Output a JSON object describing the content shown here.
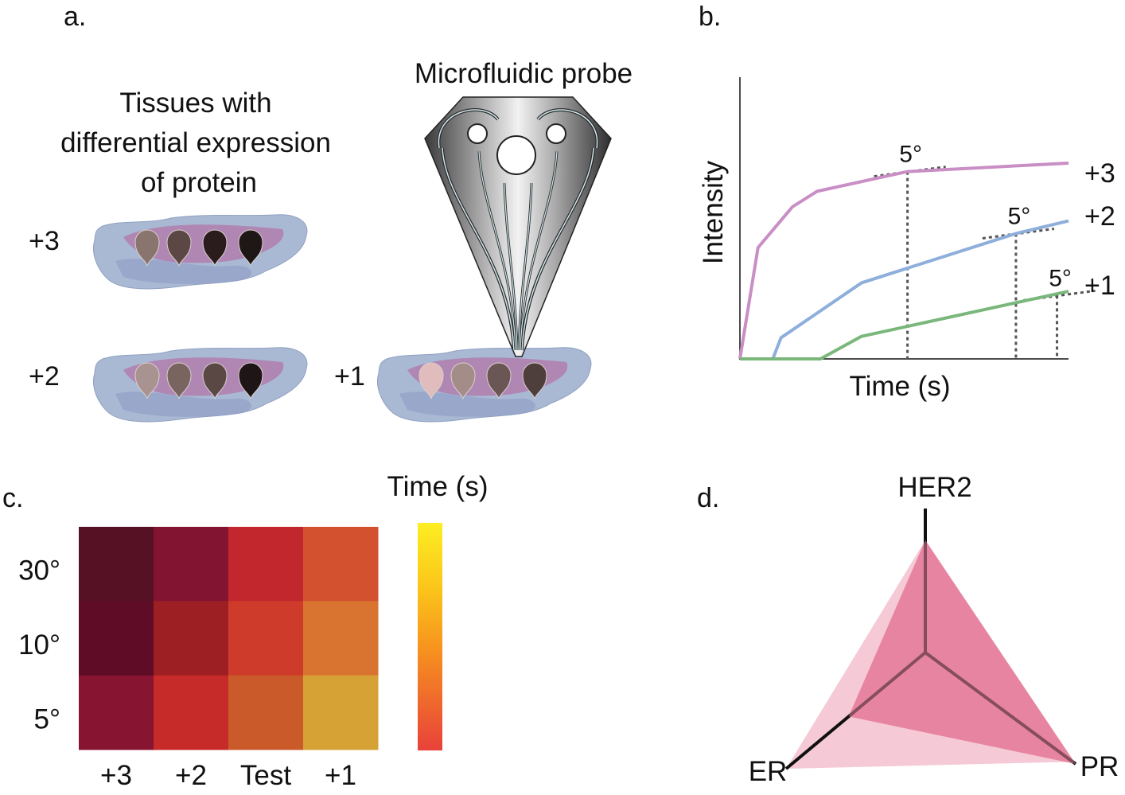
{
  "panels": {
    "a": {
      "label": "a.",
      "tissue_title": [
        "Tissues with",
        "differential expression",
        "of protein"
      ],
      "probe_title": "Microfluidic probe",
      "tissues": [
        {
          "label": "+3",
          "drops": [
            "#8a746e",
            "#5b4743",
            "#2a1c1c",
            "#1f1616"
          ]
        },
        {
          "label": "+2",
          "drops": [
            "#a89390",
            "#7a6460",
            "#5a4845",
            "#1e1616"
          ]
        },
        {
          "label": "+1",
          "drops": [
            "#e0bcbc",
            "#a48c88",
            "#6a5654",
            "#4e3e3c"
          ]
        }
      ]
    },
    "b": {
      "label": "b.",
      "ylabel": "Intensity",
      "xlabel": "Time (s)",
      "angle_label": "5°",
      "series": [
        {
          "name": "+3",
          "color": "#c98fc5"
        },
        {
          "name": "+2",
          "color": "#8eaedb"
        },
        {
          "name": "+1",
          "color": "#7ab77a"
        }
      ]
    },
    "c": {
      "label": "c.",
      "colorbar_title": "Time (s)"
    },
    "d": {
      "label": "d.",
      "axes": [
        "HER2",
        "ER",
        "PR"
      ]
    }
  },
  "chart_data": [
    {
      "type": "line",
      "xlabel": "Time (s)",
      "ylabel": "Intensity",
      "series": [
        {
          "name": "+3",
          "x": [
            0,
            0.055,
            0.16,
            0.235,
            0.51,
            1.0
          ],
          "y": [
            0,
            0.395,
            0.54,
            0.595,
            0.665,
            0.695
          ]
        },
        {
          "name": "+2",
          "x": [
            0,
            0.1,
            0.125,
            0.37,
            0.84,
            1.0
          ],
          "y": [
            0,
            0,
            0.075,
            0.27,
            0.445,
            0.49
          ]
        },
        {
          "name": "+1",
          "x": [
            0,
            0.245,
            0.37,
            1.0
          ],
          "y": [
            0,
            0,
            0.08,
            0.24
          ]
        }
      ],
      "annotations": [
        "5°",
        "5°",
        "5°"
      ]
    },
    {
      "type": "heatmap",
      "x_categories": [
        "+3",
        "+2",
        "Test",
        "+1"
      ],
      "y_categories": [
        "30°",
        "10°",
        "5°"
      ],
      "colors": [
        [
          "#561125",
          "#831431",
          "#c1272d",
          "#d45130"
        ],
        [
          "#5f0c26",
          "#9e1f23",
          "#ce3b2a",
          "#d8742f"
        ],
        [
          "#871532",
          "#c62a29",
          "#cb5a2a",
          "#d6a235"
        ]
      ],
      "colorbar": {
        "title": "Time (s)",
        "colors": [
          "#fcee21",
          "#fbb03b",
          "#f7931e",
          "#e8423a"
        ]
      }
    },
    {
      "type": "radar",
      "axes": [
        "HER2",
        "ER",
        "PR"
      ],
      "series": [
        {
          "values": [
            0.78,
            0.55,
            1.0
          ],
          "color": "#e5809e"
        },
        {
          "values": [
            0.78,
            1.0,
            0.98
          ],
          "color": "#f3c1cf"
        }
      ]
    }
  ]
}
